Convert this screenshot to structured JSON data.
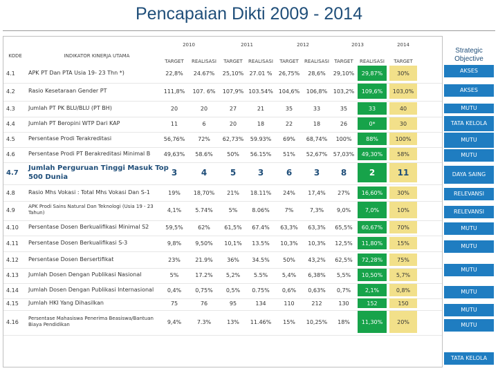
{
  "title": "Pencapaian Dikti 2009 - 2014",
  "headers": {
    "kode": "KODE",
    "indikator": "INDIKATOR KINERJA UTAMA",
    "years": [
      "2010",
      "2011",
      "2012",
      "2013",
      "2014"
    ],
    "sub": [
      "TARGET",
      "REALISASI",
      "TARGET",
      "REALISASI",
      "TARGET",
      "REALISASI",
      "TARGET",
      "REALISASI",
      "TARGET"
    ],
    "strategic_objective": "Strategic Objective"
  },
  "rows": [
    {
      "kode": "4.1",
      "indikator": "APK PT Dan PTA Usia 19- 23 Thn *)",
      "values": [
        "22,8%",
        "24.67%",
        "25,10%",
        "27.01 %",
        "26,75%",
        "28,6%",
        "29,10%",
        "29,87%",
        "30%"
      ]
    },
    {
      "kode": "4.2",
      "indikator": "Rasio Kesetaraan Gender PT",
      "values": [
        "111,8%",
        "107. 6%",
        "107,9%",
        "103.54%",
        "104,6%",
        "106,8%",
        "103,2%",
        "109,6%",
        "103,0%"
      ]
    },
    {
      "kode": "4.3",
      "indikator": "Jumlah PT PK BLU/BLU (PT BH)",
      "values": [
        "20",
        "20",
        "27",
        "21",
        "35",
        "33",
        "35",
        "33",
        "40"
      ]
    },
    {
      "kode": "4.4",
      "indikator": "Jumlah PT Beropini WTP Dari KAP",
      "values": [
        "11",
        "6",
        "20",
        "18",
        "22",
        "18",
        "26",
        "0*",
        "30"
      ]
    },
    {
      "kode": "4.5",
      "indikator": "Persentase Prodi Terakreditasi",
      "values": [
        "56,76%",
        "72%",
        "62,73%",
        "59.93%",
        "69%",
        "68,74%",
        "100%",
        "88%",
        "100%"
      ]
    },
    {
      "kode": "4.6",
      "indikator": "Persentase Prodi PT Berakreditasi Minimal B",
      "values": [
        "49,63%",
        "58.6%",
        "50%",
        "56.15%",
        "51%",
        "52,67%",
        "57,03%",
        "49,30%",
        "58%"
      ]
    },
    {
      "kode": "4.7",
      "indikator": "Jumlah Perguruan Tinggi Masuk Top 500 Dunia",
      "values": [
        "3",
        "4",
        "5",
        "3",
        "6",
        "3",
        "8",
        "2",
        "11"
      ],
      "big": true
    },
    {
      "kode": "4.8",
      "indikator": "Rasio Mhs Vokasi : Total Mhs Vokasi Dan S-1",
      "values": [
        "19%",
        "18,70%",
        "21%",
        "18.11%",
        "24%",
        "17,4%",
        "27%",
        "16,60%",
        "30%"
      ]
    },
    {
      "kode": "4.9",
      "indikator": "APK Prodi Sains Natural Dan Teknologi (Usia 19 - 23 Tahun)",
      "values": [
        "4,1%",
        "5.74%",
        "5%",
        "8.06%",
        "7%",
        "7,3%",
        "9,0%",
        "7,0%",
        "10%"
      ],
      "small": true
    },
    {
      "kode": "4.10",
      "indikator": "Persentase Dosen Berkualifikasi Minimal S2",
      "values": [
        "59,5%",
        "62%",
        "61,5%",
        "67.4%",
        "63,3%",
        "63,3%",
        "65,5%",
        "60,67%",
        "70%"
      ]
    },
    {
      "kode": "4.11",
      "indikator": "Persentase Dosen Berkualifikasi S-3",
      "values": [
        "9,8%",
        "9,50%",
        "10,1%",
        "13.5%",
        "10,3%",
        "10,3%",
        "12,5%",
        "11,80%",
        "15%"
      ]
    },
    {
      "kode": "4.12",
      "indikator": "Persentase Dosen Bersertifikat",
      "values": [
        "23%",
        "21.9%",
        "36%",
        "34.5%",
        "50%",
        "43,2%",
        "62,5%",
        "72,28%",
        "75%"
      ]
    },
    {
      "kode": "4.13",
      "indikator": "Jumlah Dosen Dengan Publikasi Nasional",
      "values": [
        "5%",
        "17.2%",
        "5,2%",
        "5.5%",
        "5,4%",
        "6,38%",
        "5,5%",
        "10,50%",
        "5,7%"
      ]
    },
    {
      "kode": "4.14",
      "indikator": "Jumlah Dosen Dengan Publikasi Internasional",
      "values": [
        "0,4%",
        "0,75%",
        "0,5%",
        "0.75%",
        "0,6%",
        "0,63%",
        "0,7%",
        "2,1%",
        "0,8%"
      ]
    },
    {
      "kode": "4.15",
      "indikator": "Jumlah HKI Yang Dihasilkan",
      "values": [
        "75",
        "76",
        "95",
        "134",
        "110",
        "212",
        "130",
        "152",
        "150"
      ]
    },
    {
      "kode": "4.16",
      "indikator": "Persentase Mahasiswa Penerima Beasiswa/Bantuan Biaya Pendidikan",
      "values": [
        "9,4%",
        "7.3%",
        "13%",
        "11.46%",
        "15%",
        "10,25%",
        "18%",
        "11,30%",
        "20%"
      ],
      "small": true
    }
  ],
  "strategic_objectives": [
    "AKSES",
    "AKSES",
    "MUTU",
    "TATA KELOLA",
    "MUTU",
    "MUTU",
    "DAYA SAING",
    "RELEVANSI",
    "RELEVANSI",
    "MUTU",
    "MUTU",
    "MUTU",
    "MUTU",
    "MUTU",
    "MUTU",
    "TATA KELOLA"
  ],
  "colors": {
    "title": "#1f4e79",
    "realisasi_2013": "#17a34a",
    "target_2014": "#f2e08a",
    "strategic_box": "#1f7dc1"
  }
}
